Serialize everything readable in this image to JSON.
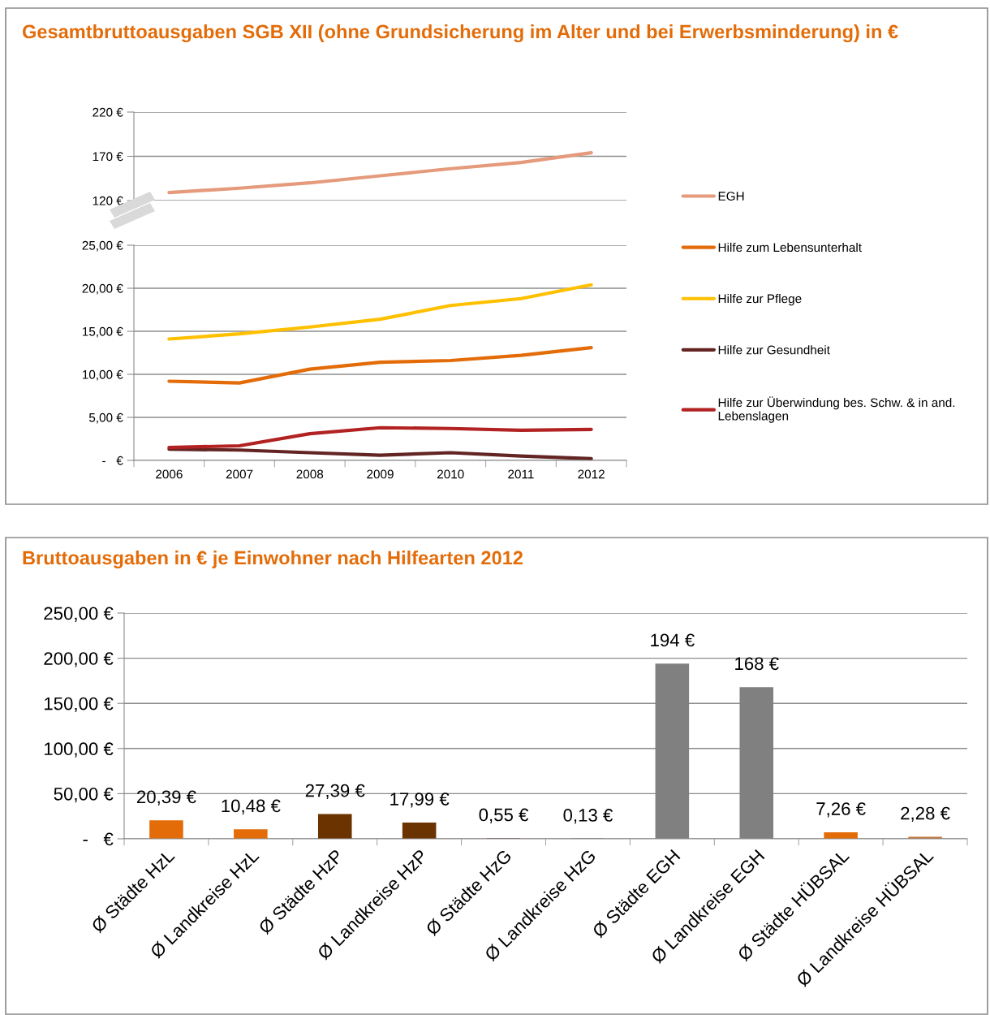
{
  "chart_data": [
    {
      "type": "line",
      "title": "Gesamtbruttoausgaben SGB XII (ohne Grundsicherung im Alter und bei Erwerbsminderung) in €",
      "categories": [
        "2006",
        "2007",
        "2008",
        "2009",
        "2010",
        "2011",
        "2012"
      ],
      "tick_labels": "y",
      "ylim": [
        120,
        220
      ],
      "yticks": [
        {
          "value": 120,
          "label": "120 €"
        },
        {
          "value": 170,
          "label": "170 €"
        },
        {
          "value": 220,
          "label": "220 €"
        }
      ],
      "grid": "y",
      "legend": "right",
      "marker": "none",
      "line_style": "solid",
      "series": [
        {
          "name": "EGH",
          "color": "#e59a7c",
          "values": [
            129,
            134,
            140,
            148,
            156,
            163,
            174
          ]
        }
      ]
    },
    {
      "type": "line",
      "categories": [
        "2006",
        "2007",
        "2008",
        "2009",
        "2010",
        "2011",
        "2012"
      ],
      "ylim": [
        0,
        25
      ],
      "yticks": [
        {
          "value": 0,
          "label": "-   €"
        },
        {
          "value": 5,
          "label": "5,00 €"
        },
        {
          "value": 10,
          "label": "10,00 €"
        },
        {
          "value": 15,
          "label": "15,00 €"
        },
        {
          "value": 20,
          "label": "20,00 €"
        },
        {
          "value": 25,
          "label": "25,00 €"
        }
      ],
      "grid": "y",
      "legend": "right",
      "marker": "none",
      "line_style": "solid",
      "series": [
        {
          "name": "Hilfe zum Lebensunterhalt",
          "color": "#e36c09",
          "values": [
            9.2,
            9.0,
            10.6,
            11.4,
            11.6,
            12.2,
            13.1
          ]
        },
        {
          "name": "Hilfe zur Pflege",
          "color": "#ffc000",
          "values": [
            14.1,
            14.7,
            15.5,
            16.4,
            18.0,
            18.8,
            20.4
          ]
        },
        {
          "name": "Hilfe zur Gesundheit",
          "color": "#632523",
          "values": [
            1.3,
            1.2,
            0.9,
            0.6,
            0.9,
            0.5,
            0.2
          ]
        },
        {
          "name": "Hilfe zur Überwindung bes. Schw. & in and. Lebenslagen",
          "color": "#b22222",
          "values": [
            1.5,
            1.7,
            3.1,
            3.8,
            3.7,
            3.5,
            3.6
          ]
        }
      ]
    },
    {
      "type": "bar",
      "title": "Bruttoausgaben in € je Einwohner nach Hilfearten 2012",
      "categories": [
        "Ø Städte HzL",
        "Ø Landkreise HzL",
        "Ø Städte HzP",
        "Ø Landkreise HzP",
        "Ø Städte HzG",
        "Ø Landkreise HzG",
        "Ø Städte EGH",
        "Ø Landkreise EGH",
        "Ø Städte HÜBSAL",
        "Ø Landkreise HÜBSAL"
      ],
      "values": [
        20.39,
        10.48,
        27.39,
        17.99,
        0.55,
        0.13,
        194,
        168,
        7.26,
        2.28
      ],
      "colors": [
        "#e36c09",
        "#e36c09",
        "#6b3300",
        "#6b3300",
        "#632523",
        "#632523",
        "#808080",
        "#808080",
        "#e36c09",
        "#c0783c"
      ],
      "value_labels": [
        "20,39 €",
        "10,48 €",
        "27,39 €",
        "17,99 €",
        "0,55 €",
        "0,13 €",
        "194 €",
        "168 €",
        "7,26 €",
        "2,28 €"
      ],
      "ylim": [
        0,
        250
      ],
      "yticks": [
        {
          "value": 0,
          "label": "-   €"
        },
        {
          "value": 50,
          "label": "50,00 €"
        },
        {
          "value": 100,
          "label": "100,00 €"
        },
        {
          "value": 150,
          "label": "150,00 €"
        },
        {
          "value": 200,
          "label": "200,00 €"
        },
        {
          "value": 250,
          "label": "250,00 €"
        }
      ],
      "grid": "y"
    }
  ]
}
